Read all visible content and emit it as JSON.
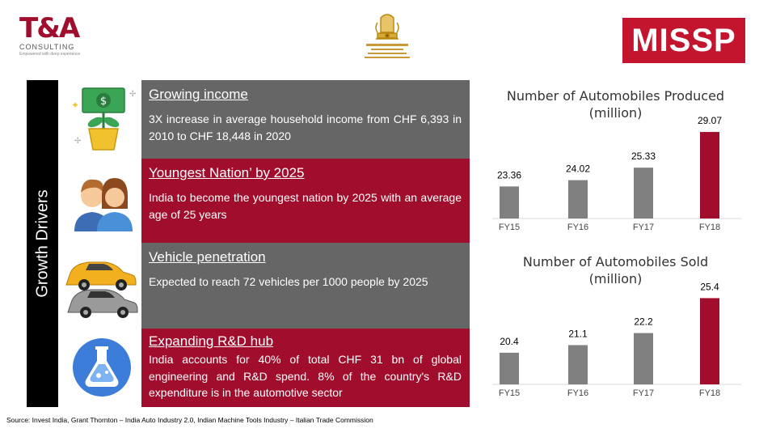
{
  "header": {
    "ta_logo": {
      "mark": "T&A",
      "name": "CONSULTING",
      "tagline": "Empowered with deep experience"
    },
    "emblem_icon": "indian-emblem-icon",
    "misp_logo": {
      "text": "MISSP",
      "color": "#c4152f"
    }
  },
  "side_label": "Growth Drivers",
  "rows": [
    {
      "icon": "money-plant-icon",
      "title": "Growing income",
      "body": "3X increase in average household income from CHF 6,393 in 2010 to CHF 18,448 in 2020"
    },
    {
      "icon": "young-couple-icon",
      "title": "Youngest Nation’ by 2025",
      "body": "India to become the youngest nation by 2025 with an average age of 25 years"
    },
    {
      "icon": "cars-icon",
      "title": "Vehicle penetration",
      "body": "Expected to reach 72 vehicles per 1000 people by 2025"
    },
    {
      "icon": "lab-flask-icon",
      "title": "Expanding R&D hub",
      "body": "India accounts for 40% of total CHF 31 bn of global engineering and R&D spend. 8% of the country's R&D expenditure is in the automotive sector"
    }
  ],
  "colors": {
    "maroon": "#a10d2c",
    "grey_panel": "#666666",
    "bar_grey": "#808080",
    "bar_highlight": "#a10d2c"
  },
  "chart_data": [
    {
      "type": "bar",
      "title": "Number of Automobiles Produced (million)",
      "title_lines": [
        "Number of Automobiles Produced",
        "(million)"
      ],
      "categories": [
        "FY15",
        "FY16",
        "FY17",
        "FY18"
      ],
      "values": [
        23.36,
        24.02,
        25.33,
        29.07
      ],
      "value_labels": [
        "23.36",
        "24.02",
        "25.33",
        "29.07"
      ],
      "highlight_index": 3,
      "ylim": [
        20,
        29.5
      ],
      "grid": false,
      "legend": "none"
    },
    {
      "type": "bar",
      "title": "Number of Automobiles Sold (million)",
      "title_lines": [
        "Number of Automobiles Sold",
        "(million)"
      ],
      "categories": [
        "FY15",
        "FY16",
        "FY17",
        "FY18"
      ],
      "values": [
        20.4,
        21.1,
        22.2,
        25.4
      ],
      "value_labels": [
        "20.4",
        "21.1",
        "22.2",
        "25.4"
      ],
      "highlight_index": 3,
      "ylim": [
        17.5,
        25.8
      ],
      "grid": false,
      "legend": "none"
    }
  ],
  "source": "Source: Invest India, Grant Thornton – India Auto Industry 2.0, Indian Machine Tools Industry – Italian Trade Commission"
}
